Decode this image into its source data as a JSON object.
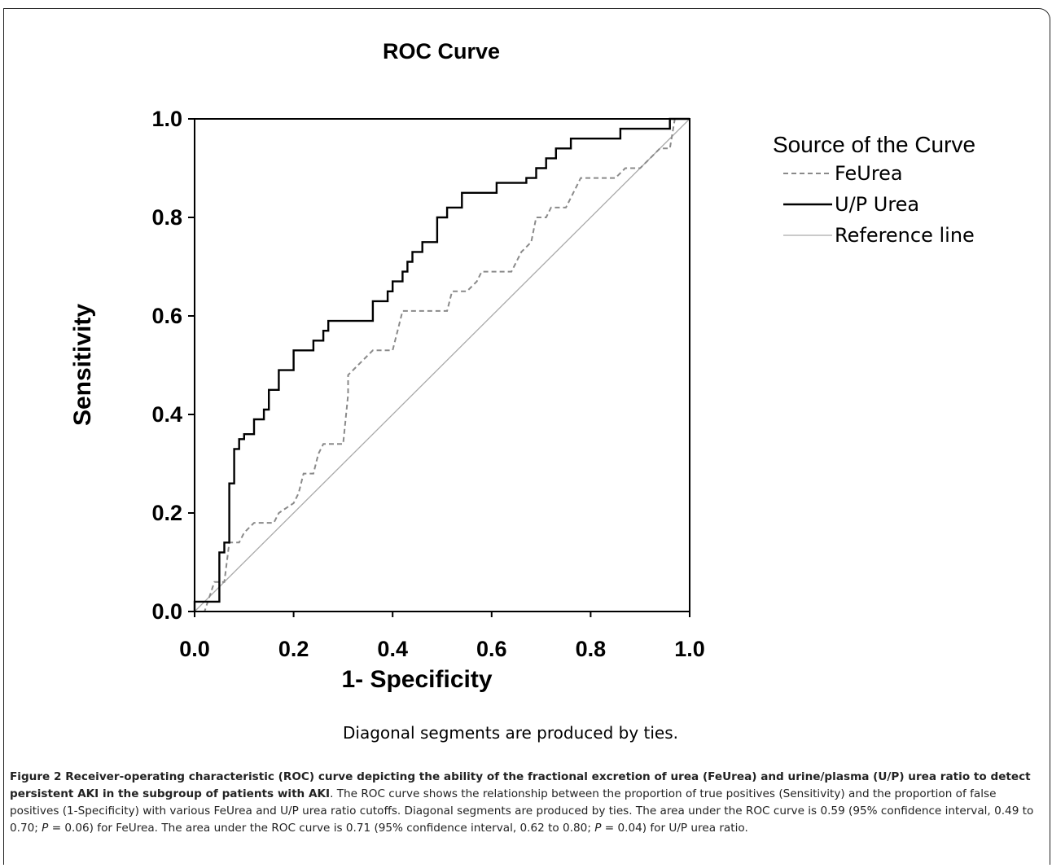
{
  "chart_data": {
    "type": "line",
    "title": "ROC Curve",
    "xlabel": "1- Specificity",
    "ylabel": "Sensitivity",
    "xlim": [
      0,
      1
    ],
    "ylim": [
      0,
      1
    ],
    "xticks": [
      "0.0",
      "0.2",
      "0.4",
      "0.6",
      "0.8",
      "1.0"
    ],
    "yticks": [
      "0.0",
      "0.2",
      "0.4",
      "0.6",
      "0.8",
      "1.0"
    ],
    "legend_title": "Source of the Curve",
    "legend_position": "right",
    "footnote": "Diagonal segments are produced by ties.",
    "series": [
      {
        "name": "FeUrea",
        "style": "dashed",
        "color": "#8a8a8a",
        "points": [
          [
            0,
            0
          ],
          [
            0.02,
            0
          ],
          [
            0.04,
            0.06
          ],
          [
            0.06,
            0.06
          ],
          [
            0.07,
            0.14
          ],
          [
            0.09,
            0.14
          ],
          [
            0.1,
            0.16
          ],
          [
            0.12,
            0.18
          ],
          [
            0.16,
            0.18
          ],
          [
            0.17,
            0.2
          ],
          [
            0.2,
            0.22
          ],
          [
            0.21,
            0.24
          ],
          [
            0.22,
            0.28
          ],
          [
            0.24,
            0.28
          ],
          [
            0.25,
            0.32
          ],
          [
            0.26,
            0.34
          ],
          [
            0.3,
            0.34
          ],
          [
            0.31,
            0.44
          ],
          [
            0.31,
            0.48
          ],
          [
            0.33,
            0.5
          ],
          [
            0.35,
            0.52
          ],
          [
            0.36,
            0.53
          ],
          [
            0.4,
            0.53
          ],
          [
            0.41,
            0.57
          ],
          [
            0.42,
            0.61
          ],
          [
            0.51,
            0.61
          ],
          [
            0.52,
            0.65
          ],
          [
            0.55,
            0.65
          ],
          [
            0.57,
            0.67
          ],
          [
            0.58,
            0.69
          ],
          [
            0.64,
            0.69
          ],
          [
            0.66,
            0.73
          ],
          [
            0.68,
            0.75
          ],
          [
            0.69,
            0.8
          ],
          [
            0.71,
            0.8
          ],
          [
            0.72,
            0.82
          ],
          [
            0.75,
            0.82
          ],
          [
            0.77,
            0.86
          ],
          [
            0.78,
            0.88
          ],
          [
            0.85,
            0.88
          ],
          [
            0.87,
            0.9
          ],
          [
            0.9,
            0.9
          ],
          [
            0.92,
            0.92
          ],
          [
            0.94,
            0.94
          ],
          [
            0.96,
            0.94
          ],
          [
            0.97,
            1
          ],
          [
            1,
            1
          ]
        ]
      },
      {
        "name": "U/P Urea",
        "style": "solid",
        "color": "#000000",
        "points": [
          [
            0,
            0
          ],
          [
            0,
            0.02
          ],
          [
            0.05,
            0.02
          ],
          [
            0.05,
            0.12
          ],
          [
            0.06,
            0.12
          ],
          [
            0.06,
            0.14
          ],
          [
            0.07,
            0.14
          ],
          [
            0.07,
            0.26
          ],
          [
            0.08,
            0.26
          ],
          [
            0.08,
            0.33
          ],
          [
            0.09,
            0.33
          ],
          [
            0.09,
            0.35
          ],
          [
            0.1,
            0.35
          ],
          [
            0.1,
            0.36
          ],
          [
            0.12,
            0.36
          ],
          [
            0.12,
            0.39
          ],
          [
            0.14,
            0.39
          ],
          [
            0.14,
            0.41
          ],
          [
            0.15,
            0.41
          ],
          [
            0.15,
            0.45
          ],
          [
            0.17,
            0.45
          ],
          [
            0.17,
            0.49
          ],
          [
            0.2,
            0.49
          ],
          [
            0.2,
            0.53
          ],
          [
            0.24,
            0.53
          ],
          [
            0.24,
            0.55
          ],
          [
            0.26,
            0.55
          ],
          [
            0.26,
            0.57
          ],
          [
            0.27,
            0.57
          ],
          [
            0.27,
            0.59
          ],
          [
            0.36,
            0.59
          ],
          [
            0.36,
            0.63
          ],
          [
            0.39,
            0.63
          ],
          [
            0.39,
            0.65
          ],
          [
            0.4,
            0.65
          ],
          [
            0.4,
            0.67
          ],
          [
            0.42,
            0.67
          ],
          [
            0.42,
            0.69
          ],
          [
            0.43,
            0.69
          ],
          [
            0.43,
            0.71
          ],
          [
            0.44,
            0.71
          ],
          [
            0.44,
            0.73
          ],
          [
            0.46,
            0.73
          ],
          [
            0.46,
            0.75
          ],
          [
            0.49,
            0.75
          ],
          [
            0.49,
            0.8
          ],
          [
            0.51,
            0.8
          ],
          [
            0.51,
            0.82
          ],
          [
            0.54,
            0.82
          ],
          [
            0.54,
            0.85
          ],
          [
            0.61,
            0.85
          ],
          [
            0.61,
            0.87
          ],
          [
            0.67,
            0.87
          ],
          [
            0.67,
            0.88
          ],
          [
            0.69,
            0.88
          ],
          [
            0.69,
            0.9
          ],
          [
            0.71,
            0.9
          ],
          [
            0.71,
            0.92
          ],
          [
            0.73,
            0.92
          ],
          [
            0.73,
            0.94
          ],
          [
            0.76,
            0.94
          ],
          [
            0.76,
            0.96
          ],
          [
            0.86,
            0.96
          ],
          [
            0.86,
            0.98
          ],
          [
            0.96,
            0.98
          ],
          [
            0.96,
            1
          ],
          [
            1,
            1
          ]
        ]
      },
      {
        "name": "Reference line",
        "style": "solid",
        "color": "#aaaaaa",
        "points": [
          [
            0,
            0
          ],
          [
            1,
            1
          ]
        ]
      }
    ]
  },
  "caption": {
    "lead": "Figure 2 Receiver-operating characteristic (ROC) curve depicting the ability of the fractional excretion of urea (FeUrea) and urine/plasma (U/P) urea ratio to detect persistent AKI in the subgroup of patients with AKI",
    "text1": ". The ROC curve shows the relationship between the proportion of true positives (Sensitivity) and the proportion of false positives (1-Specificity) with various FeUrea and U/P urea ratio cutoffs. Diagonal segments are produced by ties. The area under the ROC curve is 0.59 (95% confidence interval, 0.49 to 0.70; ",
    "p1": "P",
    "text2": " = 0.06) for FeUrea. The area under the ROC curve is 0.71 (95% confidence interval, 0.62 to 0.80; ",
    "p2": "P",
    "text3": " = 0.04) for U/P urea ratio."
  }
}
